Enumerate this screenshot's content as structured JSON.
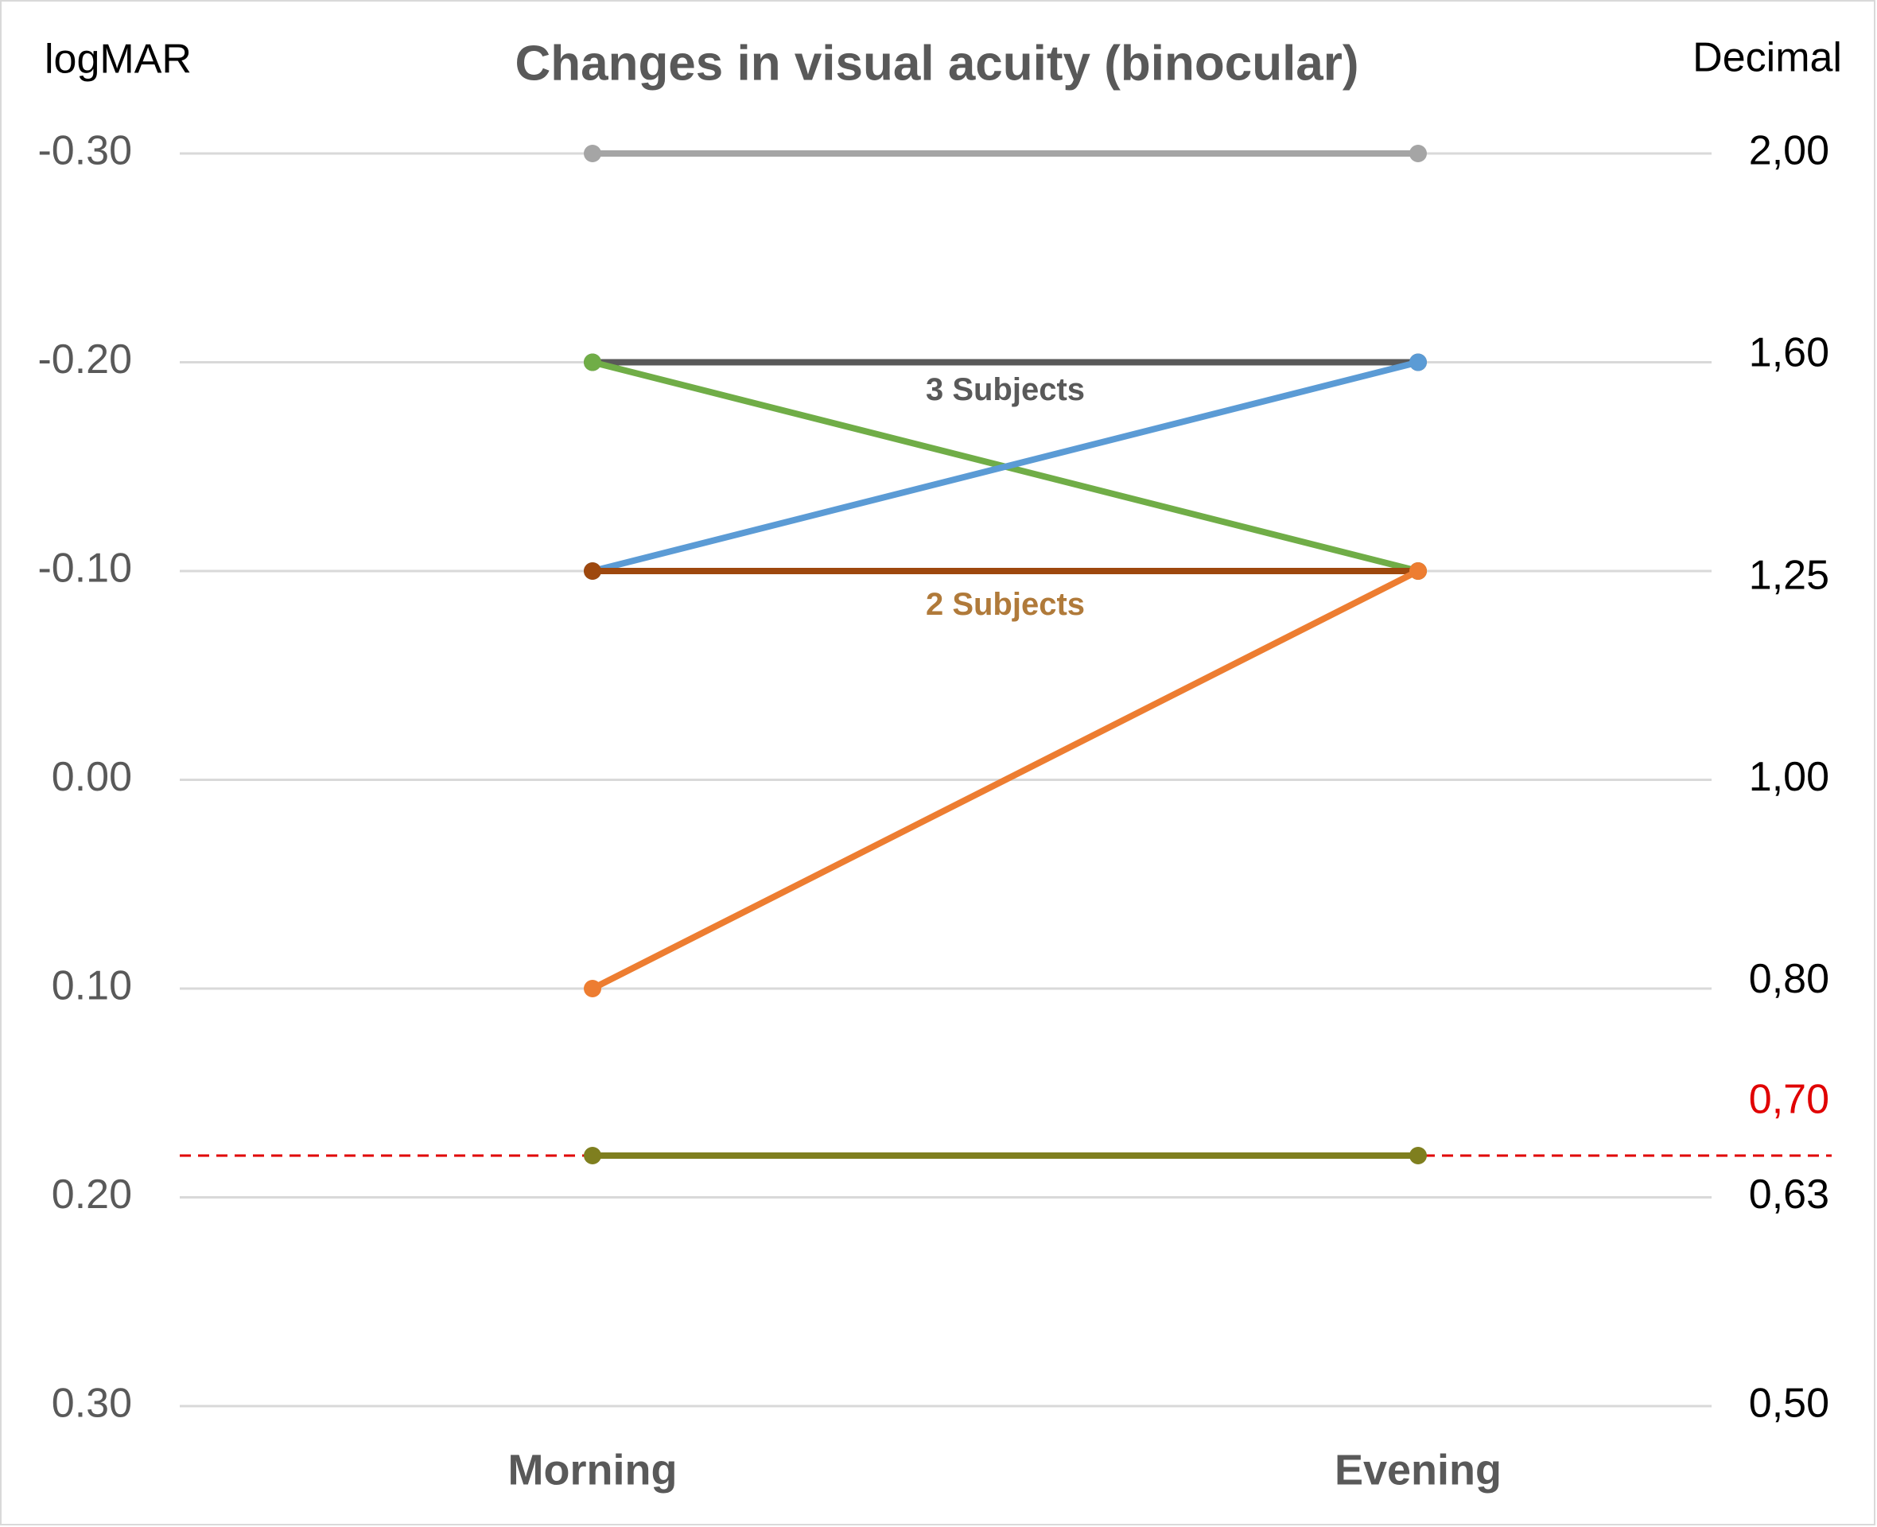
{
  "chart_data": {
    "type": "line",
    "title": "Changes in visual acuity (binocular)",
    "y_label": "logMAR",
    "y2_label": "Decimal",
    "categories": [
      "Morning",
      "Evening"
    ],
    "ylim": [
      -0.3,
      0.3
    ],
    "yticks": [
      {
        "value": -0.3,
        "label": "-0.30"
      },
      {
        "value": -0.2,
        "label": "-0.20"
      },
      {
        "value": -0.1,
        "label": "-0.10"
      },
      {
        "value": 0,
        "label": "0.00"
      },
      {
        "value": 0.1,
        "label": "0.10"
      },
      {
        "value": 0.2,
        "label": "0.20"
      },
      {
        "value": 0.3,
        "label": "0.30"
      }
    ],
    "y2scale": "log",
    "y2lim": [
      2.0,
      0.5
    ],
    "y2ticks": [
      {
        "value": 2.0,
        "label": "2,00"
      },
      {
        "value": 1.6,
        "label": "1,60"
      },
      {
        "value": 1.25,
        "label": "1,25"
      },
      {
        "value": 1.0,
        "label": "1,00"
      },
      {
        "value": 0.8,
        "label": "0,80"
      },
      {
        "value": 0.7,
        "label": "0,70",
        "color": "#e00000"
      },
      {
        "value": 0.63,
        "label": "0,63"
      },
      {
        "value": 0.5,
        "label": "0,50"
      }
    ],
    "grid": true,
    "reference_line": {
      "y": 0.18,
      "color": "#e00000",
      "dashed": true
    },
    "series": [
      {
        "color": "#a5a5a5",
        "values": [
          -0.3,
          -0.3
        ]
      },
      {
        "color": "#595959",
        "values": [
          -0.2,
          -0.2
        ]
      },
      {
        "color": "#70ad47",
        "values": [
          -0.2,
          -0.1
        ]
      },
      {
        "color": "#5b9bd5",
        "values": [
          -0.1,
          -0.2
        ]
      },
      {
        "color": "#9e480e",
        "values": [
          -0.1,
          -0.1
        ]
      },
      {
        "color": "#ed7d31",
        "values": [
          0.1,
          -0.1
        ]
      },
      {
        "color": "#7f7f1f",
        "values": [
          0.18,
          0.18
        ]
      }
    ],
    "annotations": [
      {
        "text": "3 Subjects",
        "y": -0.186,
        "color": "#595959"
      },
      {
        "text": "2 Subjects",
        "y": -0.083,
        "color": "#b07a3a"
      }
    ]
  }
}
